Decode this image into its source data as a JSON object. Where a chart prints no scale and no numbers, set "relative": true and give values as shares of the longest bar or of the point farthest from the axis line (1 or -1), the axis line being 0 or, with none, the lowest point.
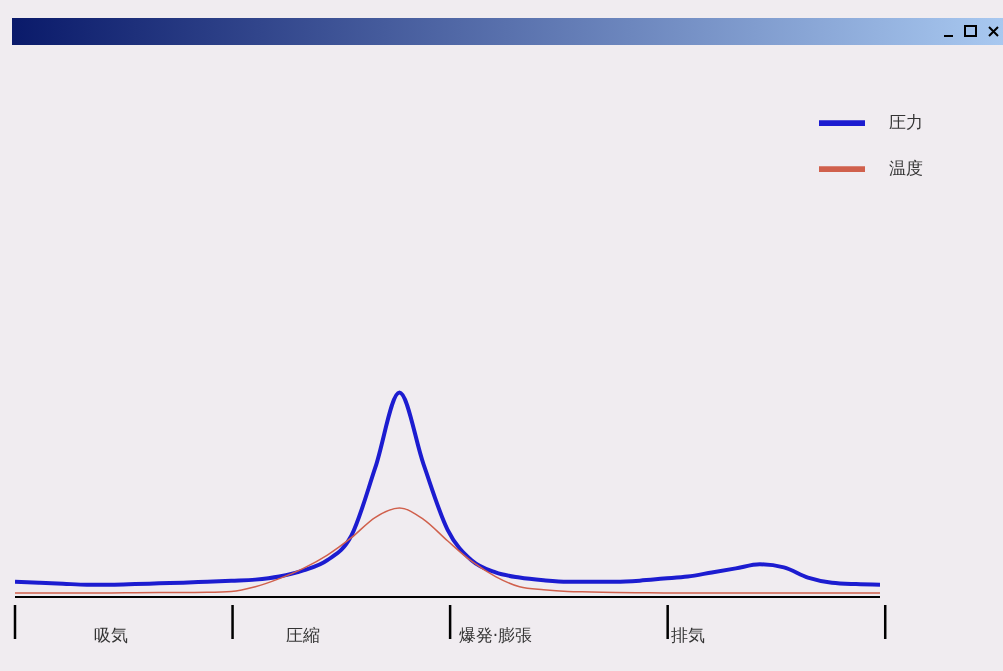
{
  "chart_data": {
    "type": "line",
    "relative": true,
    "categories": [
      null,
      null,
      null,
      null,
      "吸気",
      null,
      null,
      null,
      null,
      null,
      null,
      null,
      "圧縮",
      null,
      null,
      null,
      null,
      null,
      null,
      null,
      "爆発·膨張",
      null,
      null,
      null,
      null,
      null,
      null,
      null,
      "排気",
      null,
      null,
      null,
      null,
      null,
      null,
      null,
      null
    ],
    "grid": false,
    "legend": "top right",
    "marker": "none",
    "line_style": "solid",
    "series": [
      {
        "name": "圧力",
        "color": "#1c1cd0",
        "values": [
          0.075,
          0.07,
          0.065,
          0.06,
          0.06,
          0.063,
          0.067,
          0.07,
          0.075,
          0.08,
          0.085,
          0.1,
          0.13,
          0.18,
          0.3,
          0.635,
          1,
          0.65,
          0.33,
          0.18,
          0.12,
          0.095,
          0.082,
          0.075,
          0.075,
          0.075,
          0.08,
          0.09,
          0.1,
          0.12,
          0.14,
          0.16,
          0.145,
          0.095,
          0.07,
          0.063,
          0.06
        ]
      },
      {
        "name": "温度",
        "color": "#d0604c",
        "values": [
          0.02,
          0.02,
          0.02,
          0.02,
          0.02,
          0.021,
          0.022,
          0.022,
          0.023,
          0.027,
          0.05,
          0.09,
          0.14,
          0.205,
          0.29,
          0.39,
          0.435,
          0.38,
          0.275,
          0.175,
          0.1,
          0.05,
          0.035,
          0.027,
          0.025,
          0.022,
          0.021,
          0.02,
          0.02,
          0.02,
          0.02,
          0.02,
          0.02,
          0.02,
          0.02,
          0.02,
          0.02
        ]
      }
    ]
  }
}
